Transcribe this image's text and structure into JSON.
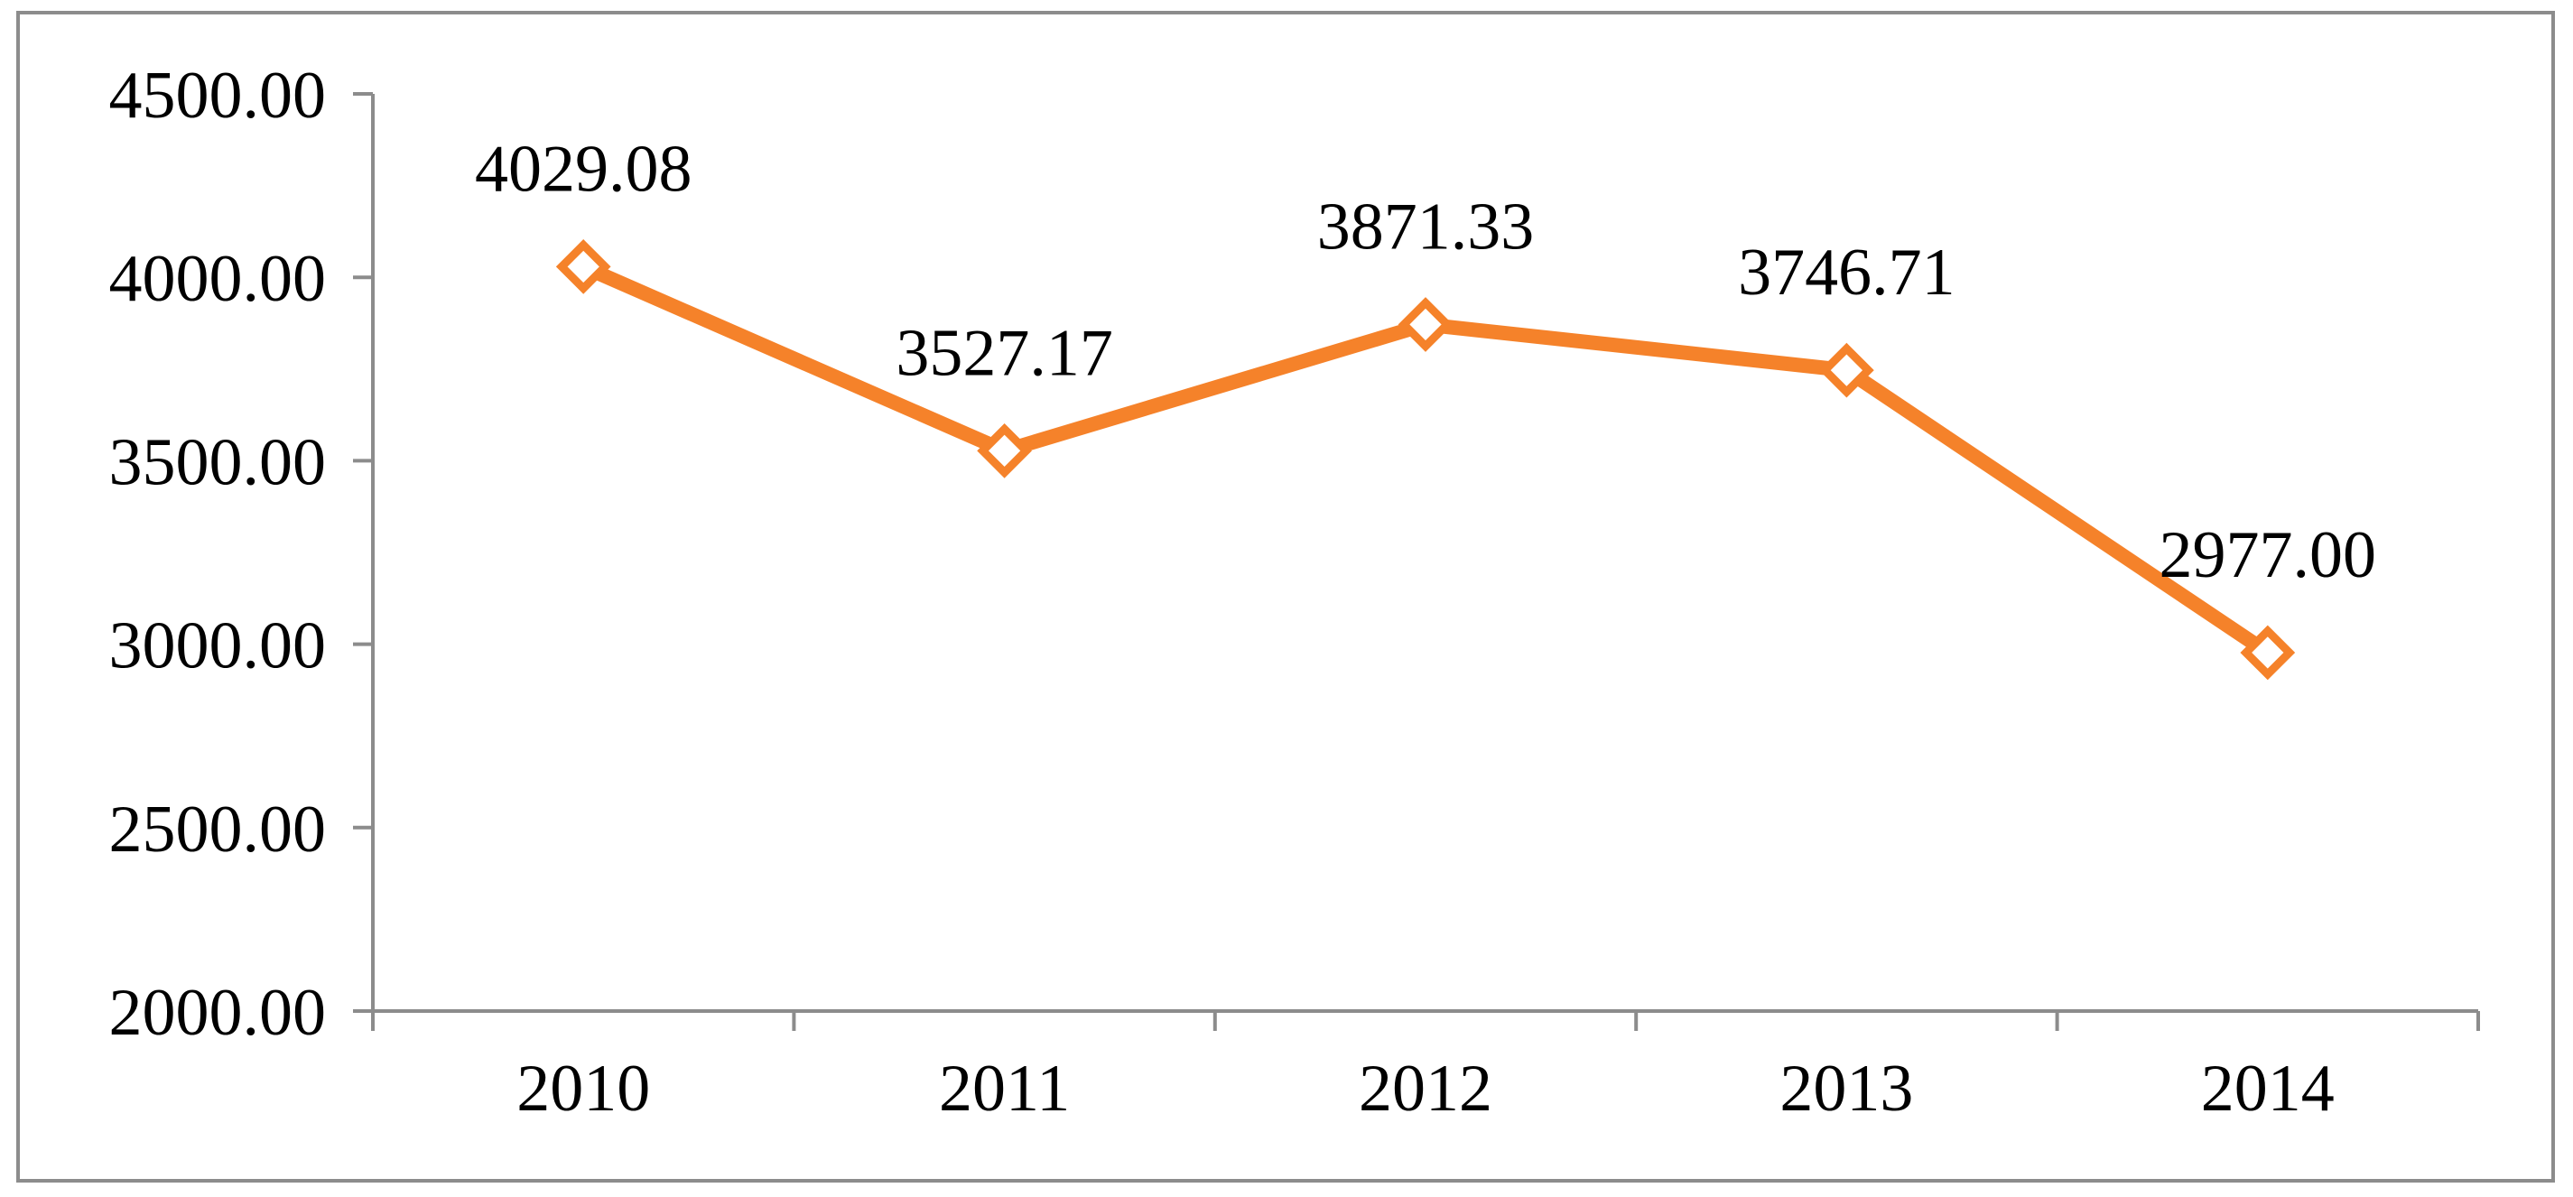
{
  "chart_data": {
    "type": "line",
    "categories": [
      "2010",
      "2011",
      "2012",
      "2013",
      "2014"
    ],
    "series": [
      {
        "values": [
          4029.08,
          3527.17,
          3871.33,
          3746.71,
          2977.0
        ]
      }
    ],
    "data_labels": [
      "4029.08",
      "3527.17",
      "3871.33",
      "3746.71",
      "2977.00"
    ],
    "y_tick_labels": [
      "2000.00",
      "2500.00",
      "3000.00",
      "3500.00",
      "4000.00",
      "4500.00"
    ],
    "y_ticks": [
      2000,
      2500,
      3000,
      3500,
      4000,
      4500
    ],
    "ylim": [
      2000,
      4500
    ],
    "title": "",
    "xlabel": "",
    "ylabel": "",
    "grid": false,
    "legend": "none",
    "marker": "diamond-open",
    "colors": {
      "line": "#F5822A",
      "axis": "#8c8c8c",
      "frame": "#8c8c8c",
      "text": "#000000"
    }
  }
}
